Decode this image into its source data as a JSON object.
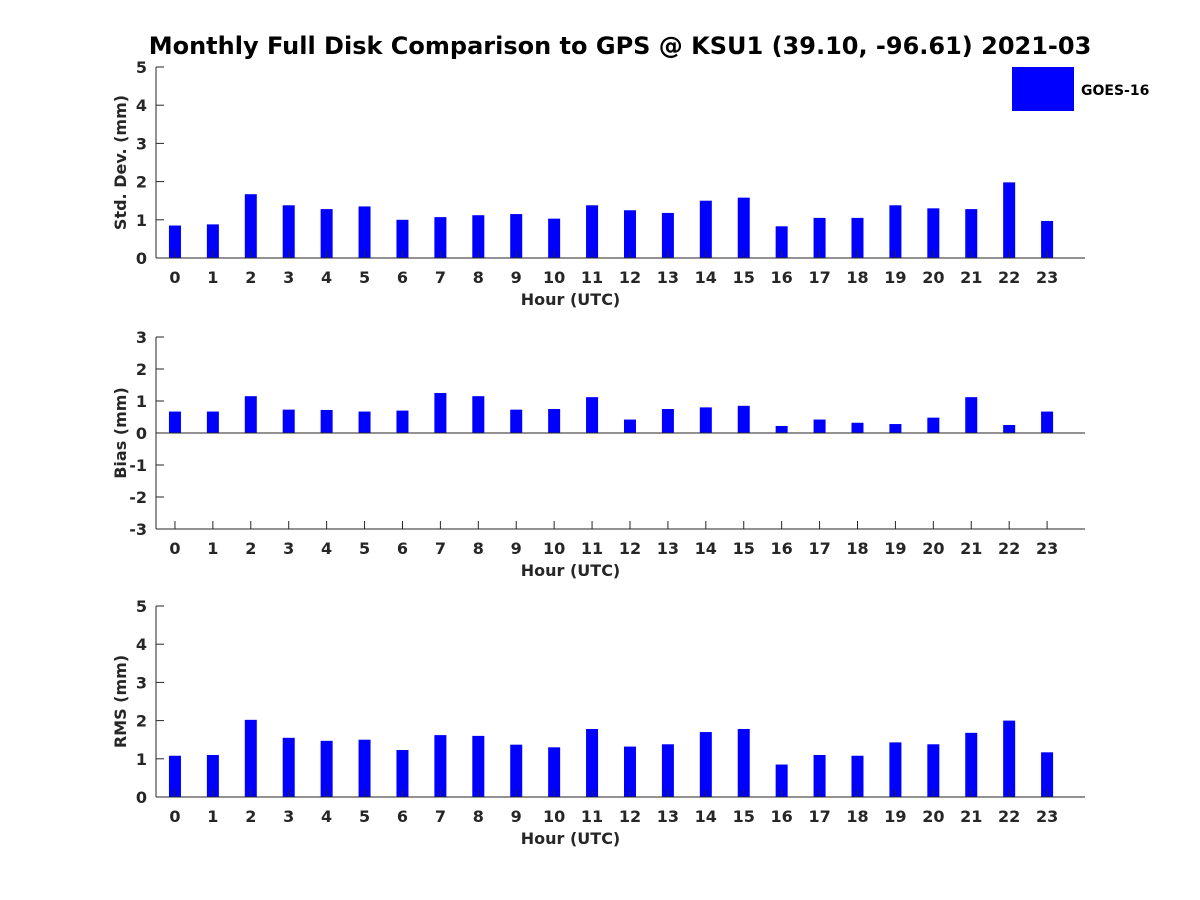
{
  "figure": {
    "title": "Monthly Full Disk Comparison to GPS @ KSU1 (39.10, -96.61) 2021-03"
  },
  "legend": {
    "label": "GOES-16",
    "color": "#0000ff",
    "placement": "top-right"
  },
  "chart_data": [
    {
      "type": "bar",
      "series_name": "GOES-16",
      "color": "#0000ff",
      "xlabel": "Hour (UTC)",
      "ylabel": "Std. Dev. (mm)",
      "ylim": [
        0,
        5
      ],
      "yticks": [
        "0",
        "1",
        "2",
        "3",
        "4",
        "5"
      ],
      "categories": [
        "0",
        "1",
        "2",
        "3",
        "4",
        "5",
        "6",
        "7",
        "8",
        "9",
        "10",
        "11",
        "12",
        "13",
        "14",
        "15",
        "16",
        "17",
        "18",
        "19",
        "20",
        "21",
        "22",
        "23"
      ],
      "values": [
        0.85,
        0.88,
        1.67,
        1.38,
        1.28,
        1.35,
        1.0,
        1.07,
        1.12,
        1.15,
        1.03,
        1.38,
        1.25,
        1.18,
        1.5,
        1.58,
        0.83,
        1.05,
        1.05,
        1.38,
        1.3,
        1.28,
        1.98,
        0.97
      ]
    },
    {
      "type": "bar",
      "series_name": "GOES-16",
      "color": "#0000ff",
      "xlabel": "Hour (UTC)",
      "ylabel": "Bias (mm)",
      "ylim": [
        -3,
        3
      ],
      "yticks": [
        "-3",
        "-2",
        "-1",
        "0",
        "1",
        "2",
        "3"
      ],
      "categories": [
        "0",
        "1",
        "2",
        "3",
        "4",
        "5",
        "6",
        "7",
        "8",
        "9",
        "10",
        "11",
        "12",
        "13",
        "14",
        "15",
        "16",
        "17",
        "18",
        "19",
        "20",
        "21",
        "22",
        "23"
      ],
      "values": [
        0.67,
        0.67,
        1.15,
        0.73,
        0.72,
        0.67,
        0.7,
        1.25,
        1.15,
        0.73,
        0.75,
        1.12,
        0.42,
        0.75,
        0.8,
        0.85,
        0.22,
        0.42,
        0.32,
        0.28,
        0.48,
        1.12,
        0.25,
        0.67
      ]
    },
    {
      "type": "bar",
      "series_name": "GOES-16",
      "color": "#0000ff",
      "xlabel": "Hour (UTC)",
      "ylabel": "RMS (mm)",
      "ylim": [
        0,
        5
      ],
      "yticks": [
        "0",
        "1",
        "2",
        "3",
        "4",
        "5"
      ],
      "categories": [
        "0",
        "1",
        "2",
        "3",
        "4",
        "5",
        "6",
        "7",
        "8",
        "9",
        "10",
        "11",
        "12",
        "13",
        "14",
        "15",
        "16",
        "17",
        "18",
        "19",
        "20",
        "21",
        "22",
        "23"
      ],
      "values": [
        1.08,
        1.1,
        2.02,
        1.55,
        1.47,
        1.5,
        1.23,
        1.62,
        1.6,
        1.37,
        1.3,
        1.78,
        1.32,
        1.38,
        1.7,
        1.78,
        0.85,
        1.1,
        1.08,
        1.43,
        1.38,
        1.68,
        2.0,
        1.17
      ]
    }
  ]
}
